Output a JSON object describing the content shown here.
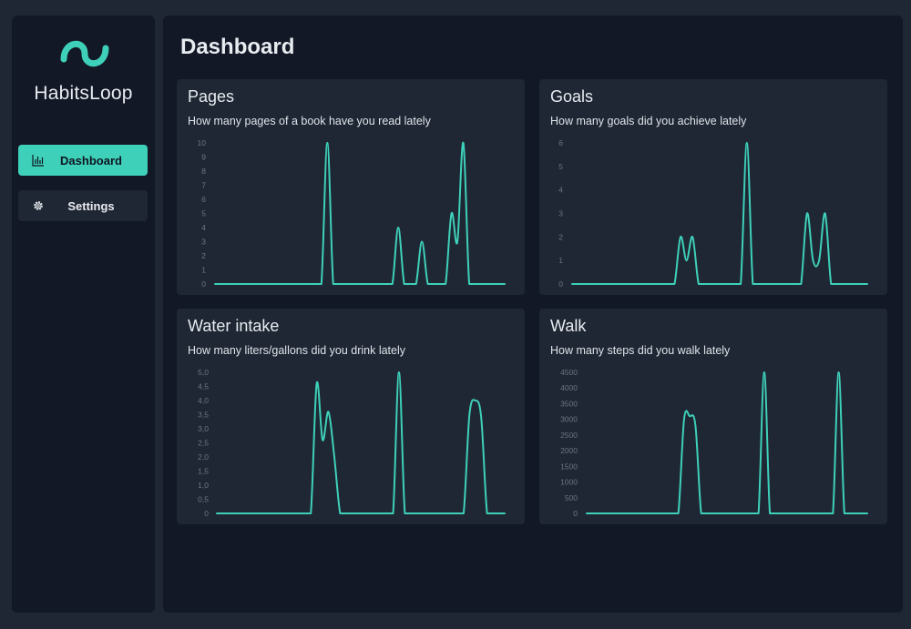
{
  "app": {
    "name": "HabitsLoop",
    "logo_icon": "loop-wave-icon",
    "accent": "#3ed0b9"
  },
  "sidebar": {
    "items": [
      {
        "label": "Dashboard",
        "icon": "bar-chart-icon",
        "active": true
      },
      {
        "label": "Settings",
        "icon": "gear-icon",
        "active": false
      }
    ]
  },
  "main": {
    "title": "Dashboard"
  },
  "cards": [
    {
      "title": "Pages",
      "subtitle": "How many pages of a book have you read lately"
    },
    {
      "title": "Goals",
      "subtitle": "How many goals did you achieve lately"
    },
    {
      "title": "Water intake",
      "subtitle": "How many liters/gallons did you drink lately"
    },
    {
      "title": "Walk",
      "subtitle": "How many steps did you walk lately"
    }
  ],
  "chart_data": [
    {
      "type": "line",
      "title": "Pages",
      "y_ticks": [
        "0",
        "1",
        "2",
        "3",
        "4",
        "5",
        "6",
        "7",
        "8",
        "9",
        "10"
      ],
      "ylim": [
        0,
        10
      ],
      "x": [
        0,
        1,
        2,
        3,
        4,
        5,
        6,
        7,
        8,
        9,
        10,
        11,
        12,
        13,
        14,
        15,
        16,
        17,
        18,
        19,
        20,
        21,
        22,
        23,
        24,
        25,
        26,
        27,
        28,
        29,
        30,
        31,
        32,
        33,
        34,
        35,
        36,
        37,
        38,
        39,
        40,
        41,
        42,
        43,
        44,
        45,
        46,
        47,
        48,
        49
      ],
      "values": [
        0,
        0,
        0,
        0,
        0,
        0,
        0,
        0,
        0,
        0,
        0,
        0,
        0,
        0,
        0,
        0,
        0,
        0,
        0,
        10,
        0,
        0,
        0,
        0,
        0,
        0,
        0,
        0,
        0,
        0,
        0,
        4,
        0,
        0,
        0,
        3,
        0,
        0,
        0,
        0,
        5,
        3,
        10,
        0,
        0,
        0,
        0,
        0,
        0,
        0
      ]
    },
    {
      "type": "line",
      "title": "Goals",
      "y_ticks": [
        "0",
        "1",
        "2",
        "3",
        "4",
        "5",
        "6"
      ],
      "ylim": [
        0,
        6
      ],
      "x": [
        0,
        1,
        2,
        3,
        4,
        5,
        6,
        7,
        8,
        9,
        10,
        11,
        12,
        13,
        14,
        15,
        16,
        17,
        18,
        19,
        20,
        21,
        22,
        23,
        24,
        25,
        26,
        27,
        28,
        29,
        30,
        31,
        32,
        33,
        34,
        35,
        36,
        37,
        38,
        39,
        40,
        41,
        42,
        43,
        44,
        45,
        46,
        47,
        48,
        49
      ],
      "values": [
        0,
        0,
        0,
        0,
        0,
        0,
        0,
        0,
        0,
        0,
        0,
        0,
        0,
        0,
        0,
        0,
        0,
        0,
        2,
        1,
        2,
        0,
        0,
        0,
        0,
        0,
        0,
        0,
        0,
        6,
        0,
        0,
        0,
        0,
        0,
        0,
        0,
        0,
        0,
        3,
        1,
        1,
        3,
        0,
        0,
        0,
        0,
        0,
        0,
        0
      ]
    },
    {
      "type": "line",
      "title": "Water intake",
      "y_ticks": [
        "0",
        "0,5",
        "1,0",
        "1,5",
        "2,0",
        "2,5",
        "3,0",
        "3,5",
        "4,0",
        "4,5",
        "5,0"
      ],
      "ylim": [
        0,
        5
      ],
      "x": [
        0,
        1,
        2,
        3,
        4,
        5,
        6,
        7,
        8,
        9,
        10,
        11,
        12,
        13,
        14,
        15,
        16,
        17,
        18,
        19,
        20,
        21,
        22,
        23,
        24,
        25,
        26,
        27,
        28,
        29,
        30,
        31,
        32,
        33,
        34,
        35,
        36,
        37,
        38,
        39,
        40,
        41,
        42,
        43,
        44,
        45,
        46,
        47,
        48,
        49
      ],
      "values": [
        0,
        0,
        0,
        0,
        0,
        0,
        0,
        0,
        0,
        0,
        0,
        0,
        0,
        0,
        0,
        0,
        0,
        4.6,
        2.6,
        3.6,
        2,
        0,
        0,
        0,
        0,
        0,
        0,
        0,
        0,
        0,
        0,
        5,
        0,
        0,
        0,
        0,
        0,
        0,
        0,
        0,
        0,
        0,
        0,
        3.5,
        4,
        3.4,
        0,
        0,
        0,
        0
      ]
    },
    {
      "type": "line",
      "title": "Walk",
      "y_ticks": [
        "0",
        "500",
        "1000",
        "1500",
        "2000",
        "2500",
        "3000",
        "3500",
        "4000",
        "4500"
      ],
      "ylim": [
        0,
        4500
      ],
      "x": [
        0,
        1,
        2,
        3,
        4,
        5,
        6,
        7,
        8,
        9,
        10,
        11,
        12,
        13,
        14,
        15,
        16,
        17,
        18,
        19,
        20,
        21,
        22,
        23,
        24,
        25,
        26,
        27,
        28,
        29,
        30,
        31,
        32,
        33,
        34,
        35,
        36,
        37,
        38,
        39,
        40,
        41,
        42,
        43,
        44,
        45,
        46,
        47,
        48,
        49
      ],
      "values": [
        0,
        0,
        0,
        0,
        0,
        0,
        0,
        0,
        0,
        0,
        0,
        0,
        0,
        0,
        0,
        0,
        0,
        3000,
        3100,
        2800,
        0,
        0,
        0,
        0,
        0,
        0,
        0,
        0,
        0,
        0,
        0,
        4500,
        0,
        0,
        0,
        0,
        0,
        0,
        0,
        0,
        0,
        0,
        0,
        0,
        4500,
        0,
        0,
        0,
        0,
        0
      ]
    }
  ]
}
